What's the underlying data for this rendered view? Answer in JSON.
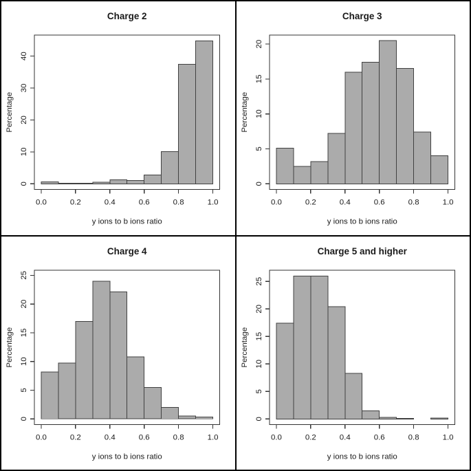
{
  "figure": {
    "background": "#ffffff",
    "outer_border_color": "#000000",
    "divider_color": "#000000",
    "text_color": "#1a1a1a",
    "axis_color": "#333333",
    "bar_fill": "#ababab",
    "bar_stroke": "#404040"
  },
  "chart_data": [
    {
      "type": "bar",
      "title": "Charge 2",
      "xlabel": "y ions to b ions ratio",
      "ylabel": "Percentage",
      "bin_edges": [
        0.0,
        0.1,
        0.2,
        0.3,
        0.4,
        0.5,
        0.6,
        0.7,
        0.8,
        0.9,
        1.0
      ],
      "values": [
        0.6,
        0.15,
        0.15,
        0.45,
        1.2,
        1.0,
        2.7,
        10.1,
        37.4,
        44.8
      ],
      "xticks": {
        "values": [
          0.0,
          0.2,
          0.4,
          0.6,
          0.8,
          1.0
        ],
        "labels": [
          "0.0",
          "0.2",
          "0.4",
          "0.6",
          "0.8",
          "1.0"
        ]
      },
      "yticks": [
        0,
        10,
        20,
        30,
        40
      ],
      "xlim": [
        -0.04,
        1.04
      ],
      "ylim": [
        -1.79,
        46.6
      ],
      "grid": false,
      "legend": null
    },
    {
      "type": "bar",
      "title": "Charge 3",
      "xlabel": "y ions to b ions ratio",
      "ylabel": "Percentage",
      "bin_edges": [
        0.0,
        0.1,
        0.2,
        0.3,
        0.4,
        0.5,
        0.6,
        0.7,
        0.8,
        0.9,
        1.0
      ],
      "values": [
        5.1,
        2.5,
        3.2,
        7.2,
        16.0,
        17.4,
        20.5,
        16.5,
        7.4,
        4.0
      ],
      "xticks": {
        "values": [
          0.0,
          0.2,
          0.4,
          0.6,
          0.8,
          1.0
        ],
        "labels": [
          "0.0",
          "0.2",
          "0.4",
          "0.6",
          "0.8",
          "1.0"
        ]
      },
      "yticks": [
        0,
        5,
        10,
        15,
        20
      ],
      "xlim": [
        -0.04,
        1.04
      ],
      "ylim": [
        -0.82,
        21.3
      ],
      "grid": false,
      "legend": null
    },
    {
      "type": "bar",
      "title": "Charge 4",
      "xlabel": "y ions to b ions ratio",
      "ylabel": "Percentage",
      "bin_edges": [
        0.0,
        0.1,
        0.2,
        0.3,
        0.4,
        0.5,
        0.6,
        0.7,
        0.8,
        0.9,
        1.0
      ],
      "values": [
        8.2,
        9.7,
        17.0,
        24.0,
        22.1,
        10.8,
        5.5,
        2.0,
        0.5,
        0.3
      ],
      "xticks": {
        "values": [
          0.0,
          0.2,
          0.4,
          0.6,
          0.8,
          1.0
        ],
        "labels": [
          "0.0",
          "0.2",
          "0.4",
          "0.6",
          "0.8",
          "1.0"
        ]
      },
      "yticks": [
        0,
        5,
        10,
        15,
        20,
        25
      ],
      "xlim": [
        -0.04,
        1.04
      ],
      "ylim": [
        -1.0,
        25.9
      ],
      "grid": false,
      "legend": null
    },
    {
      "type": "bar",
      "title": "Charge 5 and higher",
      "xlabel": "y ions to b ions ratio",
      "ylabel": "Percentage",
      "bin_edges": [
        0.0,
        0.1,
        0.2,
        0.3,
        0.4,
        0.5,
        0.6,
        0.7,
        0.8,
        0.9,
        1.0
      ],
      "values": [
        17.4,
        26.0,
        26.0,
        20.4,
        8.3,
        1.5,
        0.3,
        0.1,
        0,
        0.15
      ],
      "xticks": {
        "values": [
          0.0,
          0.2,
          0.4,
          0.6,
          0.8,
          1.0
        ],
        "labels": [
          "0.0",
          "0.2",
          "0.4",
          "0.6",
          "0.8",
          "1.0"
        ]
      },
      "yticks": [
        0,
        5,
        10,
        15,
        20,
        25
      ],
      "xlim": [
        -0.04,
        1.04
      ],
      "ylim": [
        -1.04,
        27.05
      ],
      "grid": false,
      "legend": null
    }
  ]
}
